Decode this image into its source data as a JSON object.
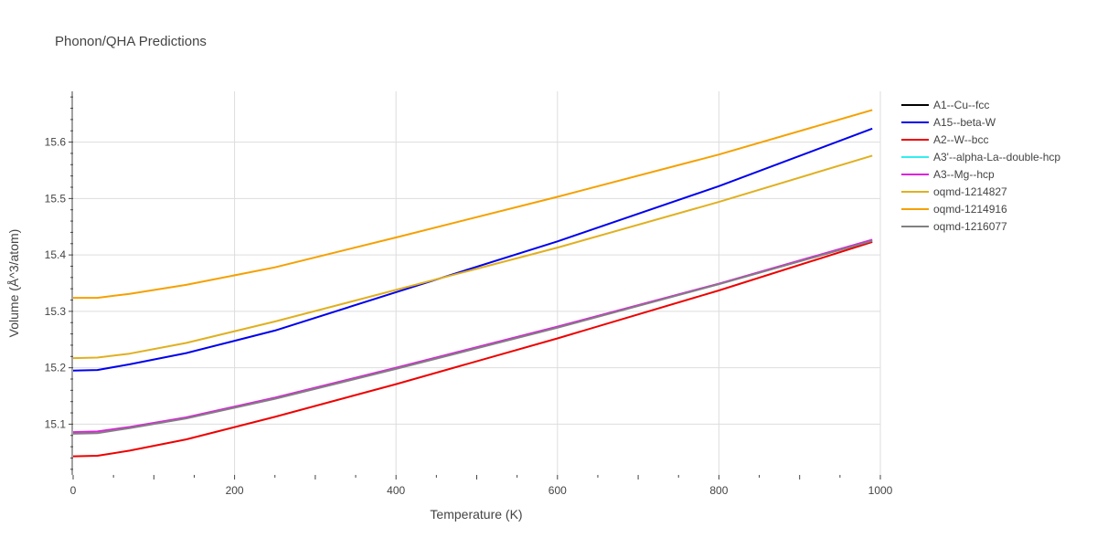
{
  "chart_data": {
    "type": "line",
    "title": "Phonon/QHA Predictions",
    "xlabel": "Temperature (K)",
    "ylabel": "Volume (Å^3/atom)",
    "xlim": [
      0,
      1000
    ],
    "ylim": [
      15.01,
      15.69
    ],
    "x_ticks": [
      0,
      200,
      400,
      600,
      800,
      1000
    ],
    "y_ticks": [
      15.1,
      15.2,
      15.3,
      15.4,
      15.5,
      15.6
    ],
    "x_tick_labels": [
      "0",
      "200",
      "400",
      "600",
      "800",
      "1000"
    ],
    "y_tick_labels": [
      "15.1",
      "15.2",
      "15.3",
      "15.4",
      "15.5",
      "15.6"
    ],
    "grid": true,
    "legend_position": "right",
    "x": [
      0,
      30,
      70,
      140,
      250,
      400,
      600,
      800,
      990
    ],
    "series": [
      {
        "name": "A1--Cu--fcc",
        "color": "#000000",
        "values": null
      },
      {
        "name": "A15--beta-W",
        "color": "#0000ee",
        "values": [
          15.195,
          15.196,
          15.206,
          15.226,
          15.266,
          15.334,
          15.424,
          15.522,
          15.624
        ]
      },
      {
        "name": "A2--W--bcc",
        "color": "#ee0000",
        "values": [
          15.043,
          15.044,
          15.053,
          15.073,
          15.113,
          15.171,
          15.252,
          15.337,
          15.423
        ]
      },
      {
        "name": "A3'--alpha-La--double-hcp",
        "color": "#33eeee",
        "values": null
      },
      {
        "name": "A3--Mg--hcp",
        "color": "#dd22dd",
        "values": [
          15.086,
          15.087,
          15.095,
          15.112,
          15.147,
          15.2,
          15.273,
          15.349,
          15.427
        ]
      },
      {
        "name": "oqmd-1214827",
        "color": "#e0b020",
        "values": [
          15.217,
          15.218,
          15.225,
          15.244,
          15.282,
          15.338,
          15.413,
          15.494,
          15.576
        ]
      },
      {
        "name": "oqmd-1214916",
        "color": "#f5a000",
        "values": [
          15.324,
          15.324,
          15.331,
          15.347,
          15.378,
          15.431,
          15.503,
          15.578,
          15.657
        ]
      },
      {
        "name": "oqmd-1216077",
        "color": "#808080",
        "values": [
          15.083,
          15.084,
          15.093,
          15.11,
          15.145,
          15.198,
          15.271,
          15.348,
          15.425
        ]
      }
    ]
  }
}
